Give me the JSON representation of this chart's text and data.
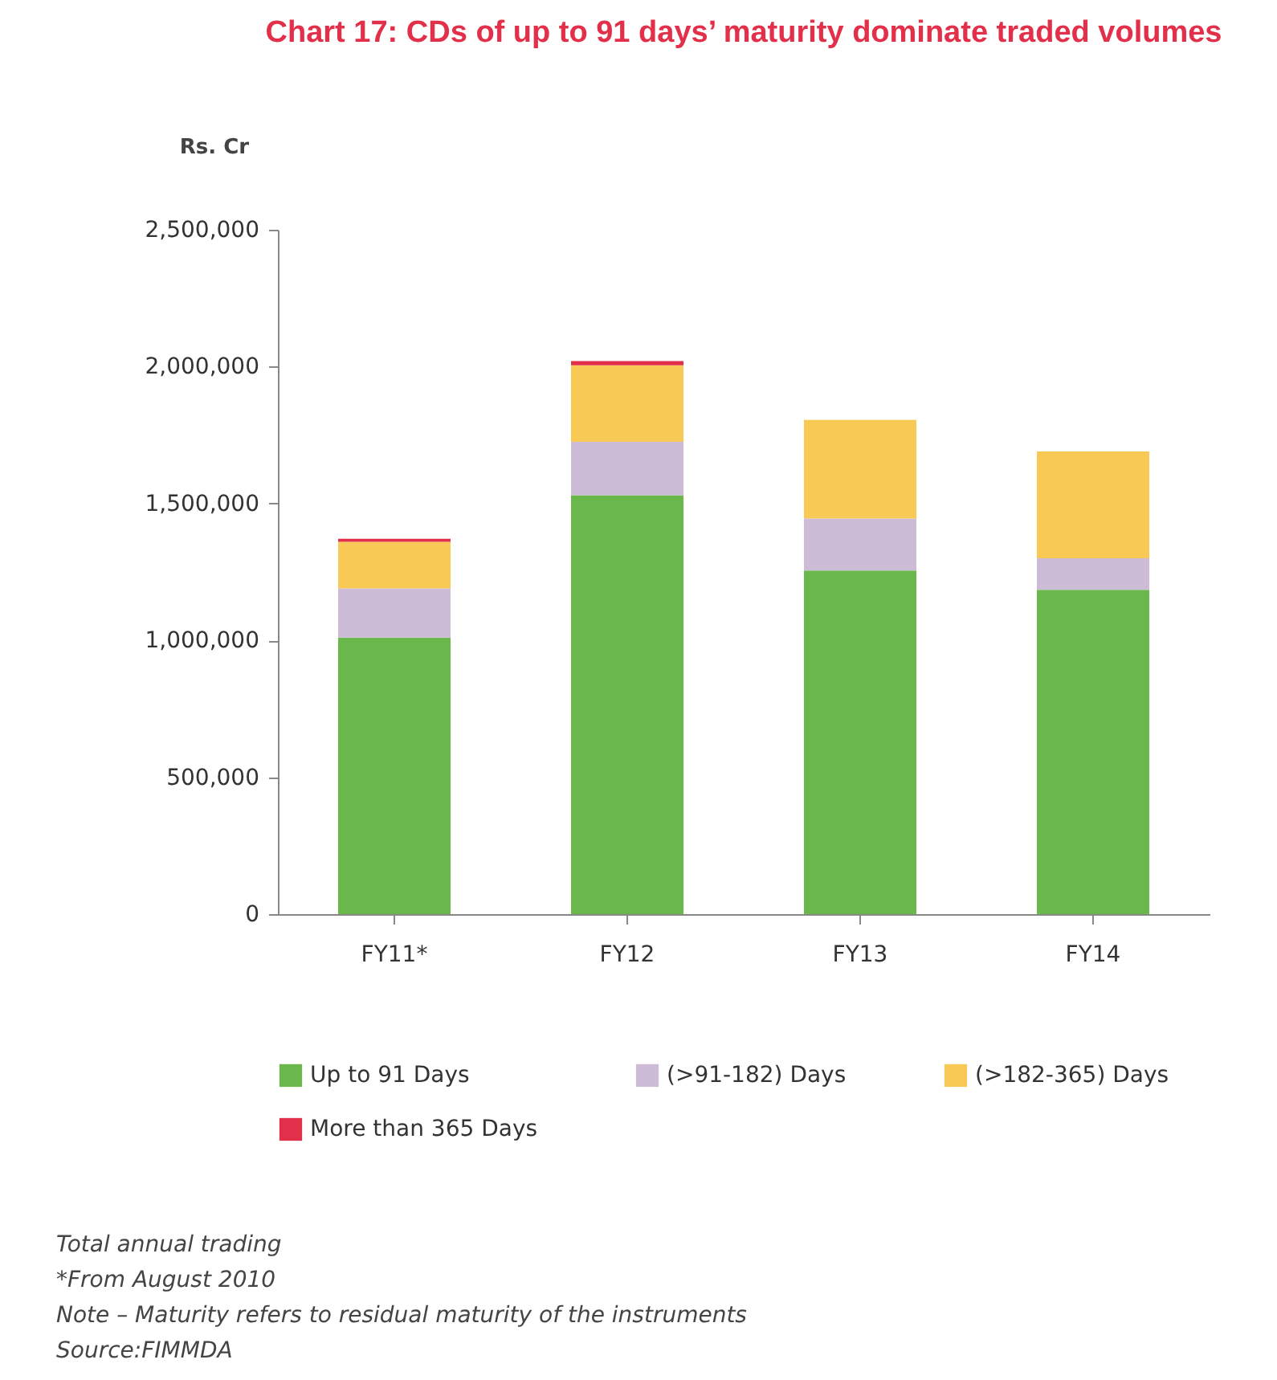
{
  "chart_data": {
    "type": "bar",
    "stacked": true,
    "title": "Chart 17: CDs of up to 91 days’ maturity dominate traded volumes",
    "ylabel": "Rs. Cr",
    "categories": [
      "FY11*",
      "FY12",
      "FY13",
      "FY14"
    ],
    "series": [
      {
        "name": "Up to 91 Days",
        "color": "#6ab74b",
        "values": [
          1010000,
          1530000,
          1255000,
          1185000
        ]
      },
      {
        "name": "(>91-182) Days",
        "color": "#cdbcd8",
        "values": [
          180000,
          195000,
          190000,
          115000
        ]
      },
      {
        "name": "(>182-365) Days",
        "color": "#f8c954",
        "values": [
          170000,
          280000,
          360000,
          390000
        ]
      },
      {
        "name": "More than 365 Days",
        "color": "#e3304a",
        "values": [
          11000,
          15000,
          null,
          null
        ]
      }
    ],
    "ylim": [
      0,
      2500000
    ],
    "yticks": [
      0,
      {
        "value": 500000,
        "label": "500,000"
      },
      {
        "value": 1000000,
        "label": "1,000,000"
      },
      {
        "value": 1500000,
        "label": "1,500,000"
      },
      {
        "value": 2000000,
        "label": "2,000,000"
      },
      {
        "value": 2500000,
        "label": "2,500,000"
      }
    ],
    "grid": false,
    "legend": "bottom",
    "annotations": [
      "Total annual trading",
      "*From August 2010",
      "Note – Maturity refers to residual maturity of the instruments",
      "Source:FIMMDA"
    ]
  }
}
